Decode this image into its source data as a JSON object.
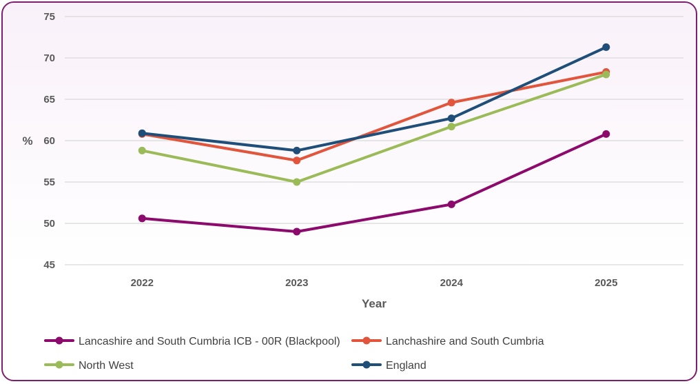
{
  "chart_data": {
    "type": "line",
    "title": "",
    "xlabel": "Year",
    "ylabel": "%",
    "categories": [
      "2022",
      "2023",
      "2024",
      "2025"
    ],
    "ylim": [
      45,
      75
    ],
    "yticks": [
      45,
      50,
      55,
      60,
      65,
      70,
      75
    ],
    "grid": true,
    "legend_position": "bottom",
    "series": [
      {
        "name": "Lancashire and South Cumbria ICB - 00R (Blackpool)",
        "color": "#8b0a6b",
        "values": [
          50.6,
          49.0,
          52.3,
          60.8
        ]
      },
      {
        "name": "Lanchashire and South Cumbria",
        "color": "#e0553b",
        "values": [
          60.8,
          57.6,
          64.6,
          68.3
        ]
      },
      {
        "name": "North West",
        "color": "#9bbb59",
        "values": [
          58.8,
          55.0,
          61.7,
          68.0
        ]
      },
      {
        "name": "England",
        "color": "#1f4e79",
        "values": [
          60.9,
          58.8,
          62.7,
          71.3
        ]
      }
    ]
  }
}
